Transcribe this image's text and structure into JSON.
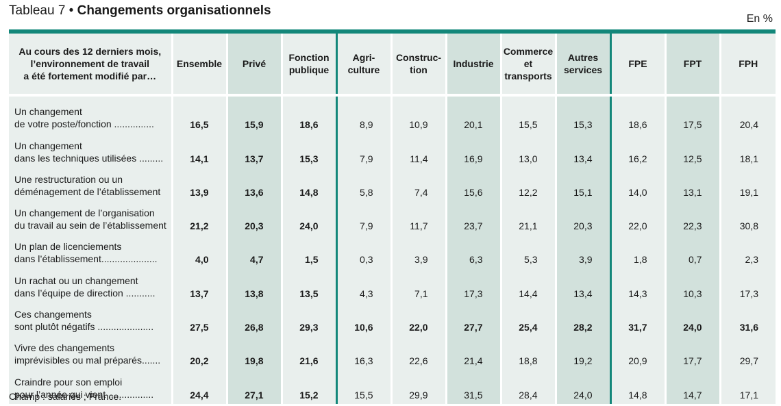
{
  "title": {
    "lead": "Tableau 7 • ",
    "main": "Changements organisationnels"
  },
  "unit": "En %",
  "table": {
    "question_lines": [
      "Au cours des 12 derniers mois,",
      "l’environnement de travail",
      "a été fortement modifié par…"
    ],
    "columns": [
      {
        "lines": [
          "Ensemble"
        ]
      },
      {
        "lines": [
          "Privé"
        ]
      },
      {
        "lines": [
          "Fonction",
          "publique"
        ]
      },
      {
        "lines": [
          "Agri-",
          "culture"
        ]
      },
      {
        "lines": [
          "Construc-",
          "tion"
        ]
      },
      {
        "lines": [
          "Industrie"
        ]
      },
      {
        "lines": [
          "Commerce",
          "et",
          "transports"
        ]
      },
      {
        "lines": [
          "Autres",
          "services"
        ]
      },
      {
        "lines": [
          "FPE"
        ]
      },
      {
        "lines": [
          "FPT"
        ]
      },
      {
        "lines": [
          "FPH"
        ]
      }
    ],
    "rows": [
      {
        "line1": "Un changement",
        "line2": "de votre poste/fonction ...............",
        "values": [
          "16,5",
          "15,9",
          "18,6",
          "8,9",
          "10,9",
          "20,1",
          "15,5",
          "15,3",
          "18,6",
          "17,5",
          "20,4"
        ],
        "bold_all": false
      },
      {
        "line1": "Un changement",
        "line2": "dans les techniques utilisées .........",
        "values": [
          "14,1",
          "13,7",
          "15,3",
          "7,9",
          "11,4",
          "16,9",
          "13,0",
          "13,4",
          "16,2",
          "12,5",
          "18,1"
        ],
        "bold_all": false
      },
      {
        "line1": "Une restructuration ou un",
        "line2": "déménagement de l’établissement",
        "values": [
          "13,9",
          "13,6",
          "14,8",
          "5,8",
          "7,4",
          "15,6",
          "12,2",
          "15,1",
          "14,0",
          "13,1",
          "19,1"
        ],
        "bold_all": false
      },
      {
        "line1": "Un changement de l’organisation",
        "line2": "du travail au sein de l’établissement",
        "values": [
          "21,2",
          "20,3",
          "24,0",
          "7,9",
          "11,7",
          "23,7",
          "21,1",
          "20,3",
          "22,0",
          "22,3",
          "30,8"
        ],
        "bold_all": false
      },
      {
        "line1": "Un plan de licenciements",
        "line2": "dans l’établissement.....................",
        "values": [
          "4,0",
          "4,7",
          "1,5",
          "0,3",
          "3,9",
          "6,3",
          "5,3",
          "3,9",
          "1,8",
          "0,7",
          "2,3"
        ],
        "bold_all": false
      },
      {
        "line1": "Un rachat ou un changement",
        "line2": "dans l’équipe de direction ...........",
        "values": [
          "13,7",
          "13,8",
          "13,5",
          "4,3",
          "7,1",
          "17,3",
          "14,4",
          "13,4",
          "14,3",
          "10,3",
          "17,3"
        ],
        "bold_all": false
      },
      {
        "line1": "Ces changements",
        "line2": "sont plutôt négatifs .....................",
        "values": [
          "27,5",
          "26,8",
          "29,3",
          "10,6",
          "22,0",
          "27,7",
          "25,4",
          "28,2",
          "31,7",
          "24,0",
          "31,6"
        ],
        "bold_all": true
      },
      {
        "line1": "Vivre des changements",
        "line2": "imprévisibles ou mal préparés.......",
        "values": [
          "20,2",
          "19,8",
          "21,6",
          "16,3",
          "22,6",
          "21,4",
          "18,8",
          "19,2",
          "20,9",
          "17,7",
          "29,7"
        ],
        "bold_all": false
      },
      {
        "line1": "Craindre pour son emploi",
        "line2": "pour l’année qui vient .................",
        "values": [
          "24,4",
          "27,1",
          "15,2",
          "15,5",
          "29,9",
          "31,5",
          "28,4",
          "24,0",
          "14,8",
          "14,7",
          "17,1"
        ],
        "bold_all": false
      }
    ]
  },
  "footnote": "Champ : salariés ; France.",
  "colors": {
    "accent": "#13877a",
    "light": "#e9efed",
    "mid": "#d2e1dc"
  }
}
